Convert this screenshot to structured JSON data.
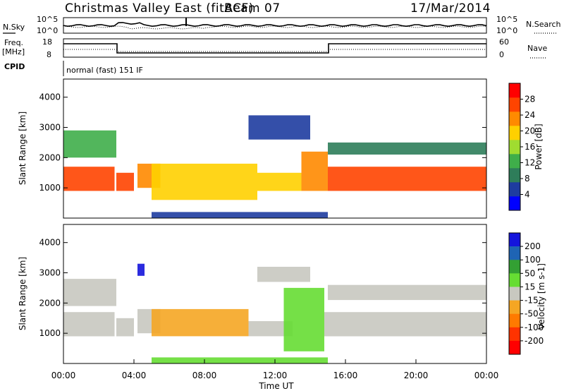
{
  "header": {
    "title": "Christmas Valley East (fitACF)",
    "beam": "Beam 07",
    "date": "17/Mar/2014"
  },
  "nsky_panel": {
    "left_label": "N.Sky",
    "right_label": "N.Search",
    "left_ticks": [
      "10^5",
      "10^0"
    ],
    "right_ticks": [
      "10^5",
      "10^0"
    ]
  },
  "freq_panel": {
    "left_label_line1": "Freq.",
    "left_label_line2": "[MHz]",
    "right_label": "Nave",
    "left_ticks": [
      "18",
      "8"
    ],
    "right_ticks": [
      "60",
      "0"
    ]
  },
  "cpid": {
    "label": "CPID",
    "text": "normal (fast) 151 IF"
  },
  "colors": {
    "power_scale": [
      "#0000ff",
      "#1e3ca0",
      "#2e7d5a",
      "#3fae4a",
      "#a0dc30",
      "#ffd000",
      "#ff8a00",
      "#ff4400",
      "#ff0000"
    ],
    "velocity_scale": [
      "#1414dc",
      "#1e64b4",
      "#33a033",
      "#66dd33",
      "#c8c8c0",
      "#f5a623",
      "#ff7a00",
      "#ff3300",
      "#ff0000"
    ]
  },
  "chart_data": [
    {
      "type": "heatmap",
      "name": "power",
      "ylabel": "Slant Range [km]",
      "ylim": [
        0,
        4600
      ],
      "yticks": [
        "1000",
        "2000",
        "3000",
        "4000"
      ],
      "xlim": [
        0,
        24
      ],
      "colorbar": {
        "label": "Power [dB]",
        "range": [
          0,
          32
        ],
        "ticks": [
          "4",
          "8",
          "12",
          "16",
          "20",
          "24",
          "28"
        ]
      },
      "regions": [
        {
          "t0": 0.0,
          "t1": 2.9,
          "r0": 900,
          "r1": 1700,
          "value": 26
        },
        {
          "t0": 0.0,
          "t1": 3.0,
          "r0": 2000,
          "r1": 2900,
          "value": 14
        },
        {
          "t0": 3.0,
          "t1": 4.0,
          "r0": 900,
          "r1": 1500,
          "value": 25
        },
        {
          "t0": 4.2,
          "t1": 5.5,
          "r0": 1000,
          "r1": 1800,
          "value": 24
        },
        {
          "t0": 5.0,
          "t1": 11.0,
          "r0": 600,
          "r1": 1800,
          "value": 20
        },
        {
          "t0": 11.0,
          "t1": 13.5,
          "r0": 900,
          "r1": 1500,
          "value": 18
        },
        {
          "t0": 10.5,
          "t1": 14.0,
          "r0": 2600,
          "r1": 3400,
          "value": 7
        },
        {
          "t0": 13.5,
          "t1": 15.0,
          "r0": 900,
          "r1": 2200,
          "value": 22
        },
        {
          "t0": 15.0,
          "t1": 24.0,
          "r0": 900,
          "r1": 1700,
          "value": 26
        },
        {
          "t0": 15.0,
          "t1": 24.0,
          "r0": 2100,
          "r1": 2500,
          "value": 10
        },
        {
          "t0": 5.0,
          "t1": 15.0,
          "r0": 0,
          "r1": 200,
          "value": 5
        }
      ]
    },
    {
      "type": "heatmap",
      "name": "velocity",
      "ylabel": "Slant Range [km]",
      "xlabel": "Time UT",
      "ylim": [
        0,
        4600
      ],
      "yticks": [
        "1000",
        "2000",
        "3000",
        "4000"
      ],
      "xlim": [
        0,
        24
      ],
      "xticks": [
        "00:00",
        "04:00",
        "08:00",
        "12:00",
        "16:00",
        "20:00",
        "00:00"
      ],
      "colorbar": {
        "label": "Velocity [m s-1]",
        "range": [
          -250,
          250
        ],
        "ticks": [
          "200",
          "100",
          "50",
          "15",
          "-15",
          "-50",
          "-100",
          "-200"
        ]
      },
      "regions": [
        {
          "t0": 0.0,
          "t1": 2.9,
          "r0": 900,
          "r1": 1700,
          "value": 0
        },
        {
          "t0": 0.0,
          "t1": 3.0,
          "r0": 1900,
          "r1": 2800,
          "value": 0
        },
        {
          "t0": 3.0,
          "t1": 4.0,
          "r0": 900,
          "r1": 1500,
          "value": 0
        },
        {
          "t0": 4.2,
          "t1": 4.6,
          "r0": 2900,
          "r1": 3300,
          "value": 220
        },
        {
          "t0": 4.2,
          "t1": 5.5,
          "r0": 1000,
          "r1": 1800,
          "value": 0
        },
        {
          "t0": 5.0,
          "t1": 10.5,
          "r0": 900,
          "r1": 1800,
          "value": -60
        },
        {
          "t0": 10.5,
          "t1": 13.0,
          "r0": 900,
          "r1": 1400,
          "value": 0
        },
        {
          "t0": 11.0,
          "t1": 14.0,
          "r0": 2700,
          "r1": 3200,
          "value": 0
        },
        {
          "t0": 12.5,
          "t1": 14.8,
          "r0": 400,
          "r1": 2500,
          "value": 40
        },
        {
          "t0": 14.8,
          "t1": 24.0,
          "r0": 900,
          "r1": 1700,
          "value": 0
        },
        {
          "t0": 15.0,
          "t1": 24.0,
          "r0": 2100,
          "r1": 2600,
          "value": 0
        },
        {
          "t0": 5.0,
          "t1": 15.0,
          "r0": 0,
          "r1": 200,
          "value": 40
        }
      ]
    }
  ]
}
